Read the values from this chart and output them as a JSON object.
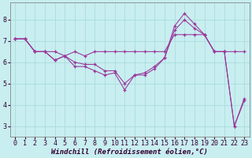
{
  "xlabel": "Windchill (Refroidissement éolien,°C)",
  "background_color": "#c8eef0",
  "grid_color": "#aadddd",
  "line_color": "#993399",
  "line1_x": [
    0,
    1,
    2,
    3,
    4,
    5,
    6,
    7,
    8,
    9,
    10,
    11,
    12,
    13,
    14,
    15,
    16,
    17,
    18,
    19,
    20,
    21,
    22,
    23
  ],
  "line1_y": [
    7.1,
    7.1,
    6.5,
    6.5,
    6.5,
    6.3,
    6.5,
    6.3,
    6.5,
    6.5,
    6.5,
    6.5,
    6.5,
    6.5,
    6.5,
    6.5,
    7.3,
    7.3,
    7.3,
    7.3,
    6.5,
    6.5,
    6.5,
    6.5
  ],
  "line2_x": [
    0,
    1,
    2,
    3,
    4,
    5,
    6,
    7,
    8,
    9,
    10,
    11,
    12,
    13,
    14,
    15,
    16,
    17,
    18,
    19,
    20,
    21,
    22,
    23
  ],
  "line2_y": [
    7.1,
    7.1,
    6.5,
    6.5,
    6.1,
    6.3,
    6.0,
    5.9,
    5.9,
    5.6,
    5.6,
    5.0,
    5.4,
    5.4,
    5.7,
    6.2,
    7.7,
    8.3,
    7.8,
    7.3,
    6.5,
    6.5,
    3.0,
    4.2
  ],
  "line3_x": [
    0,
    1,
    2,
    3,
    4,
    5,
    6,
    7,
    8,
    9,
    10,
    11,
    12,
    13,
    14,
    15,
    16,
    17,
    18,
    19,
    20,
    21,
    22,
    23
  ],
  "line3_y": [
    7.1,
    7.1,
    6.5,
    6.5,
    6.1,
    6.3,
    5.8,
    5.8,
    5.6,
    5.4,
    5.5,
    4.7,
    5.4,
    5.5,
    5.8,
    6.2,
    7.5,
    8.0,
    7.6,
    7.3,
    6.5,
    6.5,
    3.0,
    4.3
  ],
  "ylim": [
    2.5,
    8.8
  ],
  "xlim": [
    -0.5,
    23.5
  ],
  "yticks": [
    3,
    4,
    5,
    6,
    7,
    8
  ],
  "xticks": [
    0,
    1,
    2,
    3,
    4,
    5,
    6,
    7,
    8,
    9,
    10,
    11,
    12,
    13,
    14,
    15,
    16,
    17,
    18,
    19,
    20,
    21,
    22,
    23
  ],
  "fontsize_label": 6.5,
  "fontsize_tick": 6.0
}
